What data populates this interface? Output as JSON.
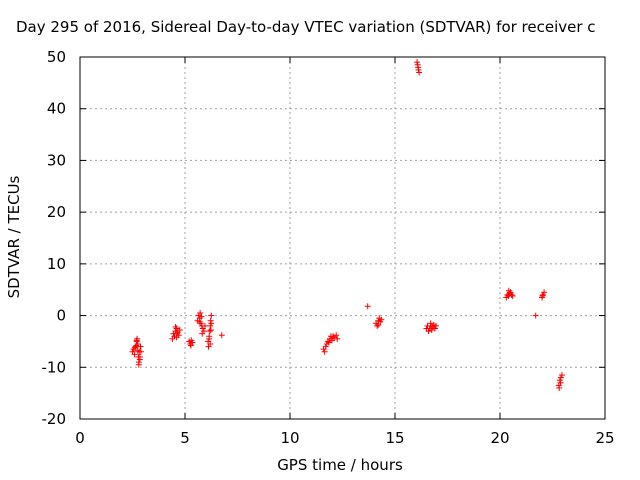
{
  "chart_data": {
    "type": "scatter",
    "title": "Day 295 of 2016, Sidereal Day-to-day VTEC variation (SDTVAR) for receiver c",
    "xlabel": "GPS time / hours",
    "ylabel": "SDTVAR / TECUs",
    "xlim": [
      0,
      25
    ],
    "ylim": [
      -20,
      50
    ],
    "xticks": [
      "0",
      "5",
      "10",
      "15",
      "20",
      "25"
    ],
    "yticks": [
      "-20",
      "-10",
      "0",
      "10",
      "20",
      "30",
      "40",
      "50"
    ],
    "grid": true,
    "marker": "+",
    "color": "#ff0000",
    "x": [
      2.5,
      2.55,
      2.6,
      2.65,
      2.7,
      2.72,
      2.75,
      2.78,
      2.8,
      2.82,
      2.85,
      2.88,
      2.9,
      2.7,
      2.75,
      2.8,
      2.85,
      2.62,
      2.68,
      4.4,
      4.45,
      4.5,
      4.55,
      4.6,
      4.65,
      4.7,
      4.75,
      4.55,
      4.6,
      4.62,
      5.2,
      5.25,
      5.3,
      5.35,
      5.28,
      5.6,
      5.65,
      5.7,
      5.72,
      5.75,
      5.8,
      5.85,
      5.9,
      5.95,
      5.7,
      5.78,
      5.82,
      6.1,
      6.12,
      6.15,
      6.18,
      6.2,
      6.22,
      6.25,
      6.2,
      6.15,
      6.25,
      6.23,
      6.75,
      11.6,
      11.65,
      11.7,
      11.75,
      11.8,
      11.9,
      12.0,
      12.05,
      12.1,
      12.2,
      12.25,
      11.85,
      11.95,
      13.7,
      14.1,
      14.15,
      14.2,
      14.25,
      14.3,
      14.35,
      14.2,
      16.05,
      16.08,
      16.1,
      16.12,
      16.15,
      16.5,
      16.55,
      16.6,
      16.65,
      16.7,
      16.75,
      16.8,
      16.85,
      16.9,
      16.95,
      16.7,
      16.6,
      20.3,
      20.35,
      20.4,
      20.45,
      20.5,
      20.55,
      20.6,
      20.42,
      21.7,
      22.0,
      22.05,
      22.1,
      22.02,
      22.8,
      22.85,
      22.9,
      22.95,
      22.88,
      22.82
    ],
    "y": [
      -7,
      -6.5,
      -7.5,
      -6,
      -5,
      -4.5,
      -5.5,
      -8,
      -9,
      -7,
      -8.5,
      -6,
      -7,
      -4.8,
      -6.8,
      -9.5,
      -8,
      -6.2,
      -5.8,
      -4.5,
      -3.5,
      -4,
      -3,
      -2.5,
      -3.2,
      -3.8,
      -2.8,
      -2.2,
      -4.2,
      -3.5,
      -5,
      -5.5,
      -4.8,
      -5.2,
      -5.8,
      -1,
      0,
      -0.5,
      0.5,
      -1.5,
      -2,
      -2.5,
      -3,
      -2,
      -1.2,
      -0.2,
      -3.5,
      -5,
      -6,
      -4,
      -3,
      -2,
      -1,
      0,
      -5.5,
      -4.5,
      -1.5,
      -2.8,
      -3.8,
      -6.5,
      -7,
      -6,
      -5.5,
      -5,
      -4.5,
      -4.8,
      -4,
      -4.2,
      -3.8,
      -4.5,
      -5.2,
      -4,
      1.8,
      -1.5,
      -2,
      -1,
      -0.5,
      -1.2,
      -0.8,
      -1.8,
      49,
      48.5,
      48,
      47.5,
      47,
      -2.5,
      -2,
      -3,
      -2.5,
      -2,
      -2.8,
      -2.2,
      -1.8,
      -2.5,
      -2,
      -1.5,
      -3,
      3.5,
      4,
      3.8,
      4.2,
      4.5,
      4,
      3.8,
      4.8,
      0,
      3.5,
      4,
      4.5,
      3.8,
      -13.5,
      -12.5,
      -12,
      -11.5,
      -13,
      -14
    ]
  }
}
